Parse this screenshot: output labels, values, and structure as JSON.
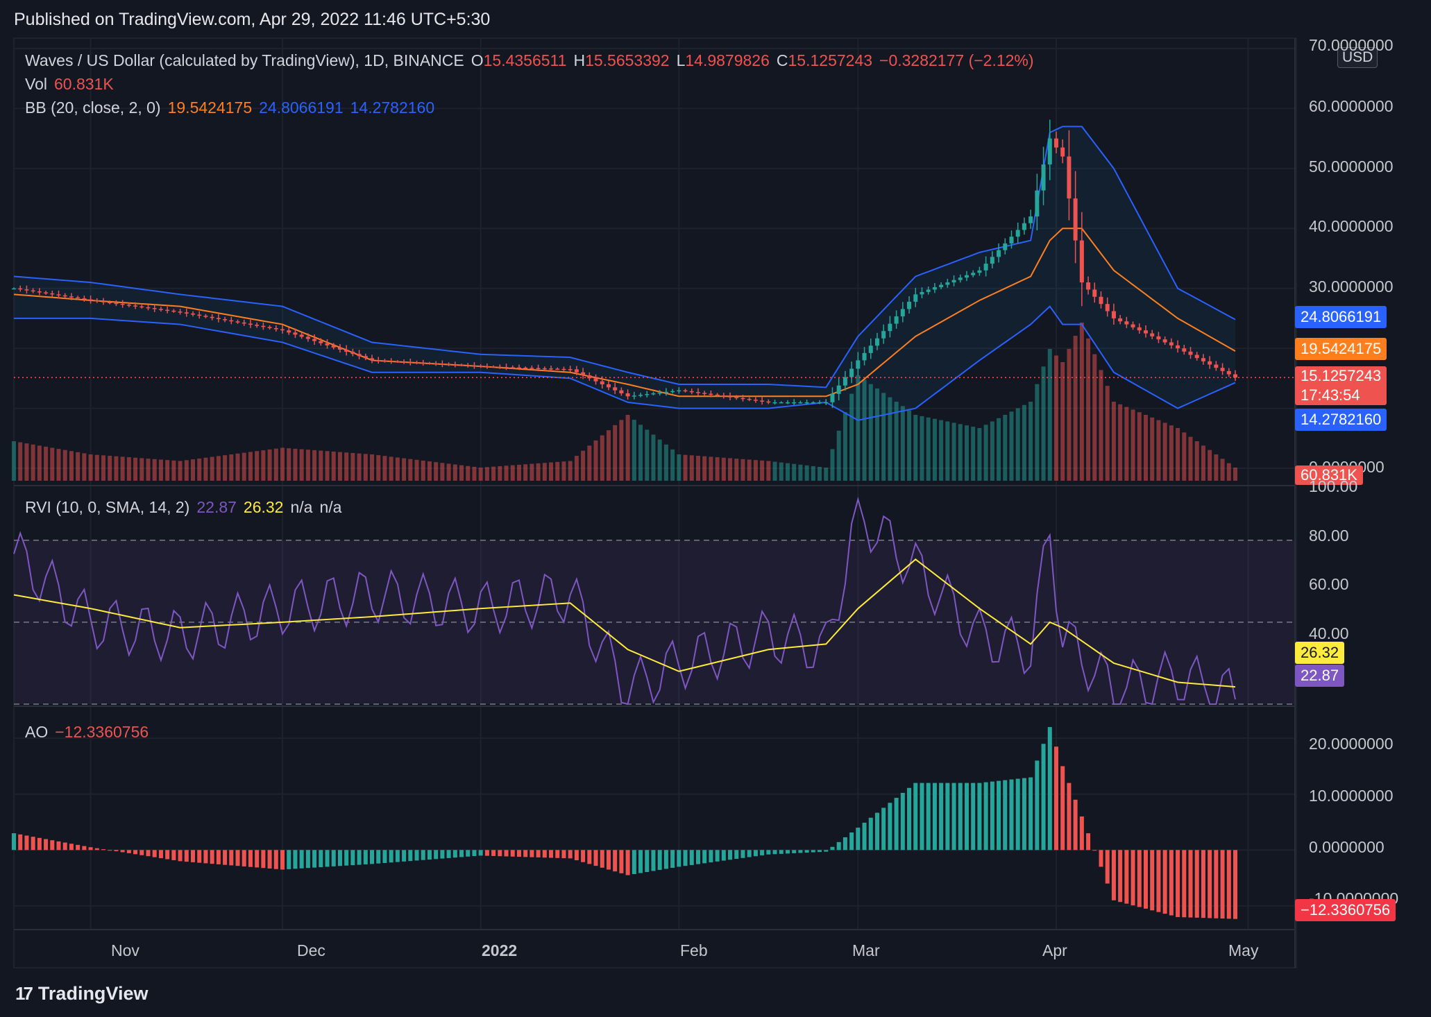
{
  "header": {
    "published": "Published on TradingView.com, Apr 29, 2022 11:46 UTC+5:30"
  },
  "footer": {
    "brand": "TradingView",
    "logo_mark": "17"
  },
  "colors": {
    "bg": "#131722",
    "up": "#26a69a",
    "down": "#ef5350",
    "bb_mid": "#ff7f1f",
    "bb_band": "#2962ff",
    "rvi": "#7e57c2",
    "rvi_signal": "#ffeb3b"
  },
  "price_pane": {
    "symbol": "Waves / US Dollar (calculated by TradingView), 1D, BINANCE",
    "o_label": "O",
    "o": "15.4356511",
    "h_label": "H",
    "h": "15.5653392",
    "l_label": "L",
    "l": "14.9879826",
    "c_label": "C",
    "c": "15.1257243",
    "change": "−0.3282177 (−2.12%)",
    "vol_label": "Vol",
    "vol": "60.831K",
    "bb_label": "BB (20, close, 2, 0)",
    "bb_basis": "19.5424175",
    "bb_upper": "24.8066191",
    "bb_lower": "14.2782160",
    "currency_button": "USD",
    "y_ticks": [
      "70.0000000",
      "60.0000000",
      "50.0000000",
      "40.0000000",
      "30.0000000",
      "0.0000000"
    ],
    "tags": {
      "upper": "24.8066191",
      "basis": "19.5424175",
      "price": "15.1257243",
      "countdown": "17:43:54",
      "lower": "14.2782160",
      "vol": "60.831K"
    }
  },
  "rvi_pane": {
    "label": "RVI (10, 0, SMA, 14, 2)",
    "rvi": "22.87",
    "signal": "26.32",
    "na1": "n/a",
    "na2": "n/a",
    "y_ticks": [
      "100.00",
      "80.00",
      "60.00",
      "40.00"
    ],
    "tags": {
      "signal": "26.32",
      "rvi": "22.87"
    }
  },
  "ao_pane": {
    "label": "AO",
    "value": "−12.3360756",
    "y_ticks": [
      "20.0000000",
      "10.0000000",
      "0.0000000",
      "-10.0000000"
    ],
    "tag": "−12.3360756"
  },
  "x_axis": {
    "labels": [
      "Nov",
      "Dec",
      "2022",
      "Feb",
      "Mar",
      "Apr",
      "May"
    ]
  },
  "chart_data": [
    {
      "type": "candlestick",
      "title": "Waves / US Dollar (calculated by TradingView), 1D, BINANCE",
      "ylim": [
        0,
        70
      ],
      "x": [
        "2021-10-20",
        "2021-11-01",
        "2021-11-15",
        "2021-12-01",
        "2021-12-15",
        "2022-01-01",
        "2022-01-15",
        "2022-01-24",
        "2022-02-01",
        "2022-02-15",
        "2022-02-24",
        "2022-03-01",
        "2022-03-10",
        "2022-03-20",
        "2022-03-28",
        "2022-03-31",
        "2022-04-02",
        "2022-04-05",
        "2022-04-10",
        "2022-04-20",
        "2022-04-29"
      ],
      "close": [
        30,
        28,
        26,
        23,
        18,
        17,
        16.5,
        12,
        13,
        11,
        11,
        18,
        29,
        33,
        42,
        55,
        52,
        31,
        25,
        20,
        15.13
      ],
      "volume_rel": [
        0.3,
        0.2,
        0.15,
        0.25,
        0.2,
        0.1,
        0.15,
        0.5,
        0.2,
        0.15,
        0.1,
        0.8,
        0.5,
        0.4,
        0.6,
        1.0,
        0.9,
        1.2,
        0.6,
        0.4,
        0.1
      ],
      "bb_upper": [
        32,
        31,
        29,
        27,
        21,
        19,
        18.5,
        16,
        14,
        14,
        13.5,
        22,
        32,
        36,
        38,
        56,
        57,
        57,
        50,
        30,
        24.81
      ],
      "bb_basis": [
        29,
        28,
        27,
        24,
        18,
        17,
        16,
        14,
        12,
        12,
        12,
        14,
        22,
        28,
        32,
        38,
        40,
        40,
        33,
        25,
        19.54
      ],
      "bb_lower": [
        25,
        25,
        24,
        21,
        16,
        16,
        15,
        11,
        10,
        10,
        11,
        8,
        10,
        18,
        24,
        27,
        24,
        24,
        16,
        10,
        14.28
      ],
      "last": {
        "open": 15.4356511,
        "high": 15.5653392,
        "low": 14.9879826,
        "close": 15.1257243,
        "volume": "60.831K"
      }
    },
    {
      "type": "line",
      "title": "RVI (10, 0, SMA, 14, 2)",
      "ylim": [
        20,
        100
      ],
      "x": [
        "2021-10-20",
        "2021-11-01",
        "2021-11-15",
        "2021-12-01",
        "2021-12-15",
        "2022-01-01",
        "2022-01-15",
        "2022-01-24",
        "2022-02-01",
        "2022-02-15",
        "2022-02-24",
        "2022-03-01",
        "2022-03-10",
        "2022-03-20",
        "2022-03-28",
        "2022-03-31",
        "2022-04-02",
        "2022-04-10",
        "2022-04-20",
        "2022-04-29"
      ],
      "series": [
        {
          "name": "RVI",
          "values": [
            75,
            50,
            45,
            55,
            60,
            55,
            60,
            25,
            35,
            45,
            40,
            90,
            70,
            45,
            40,
            83,
            45,
            25,
            30,
            22.87
          ]
        },
        {
          "name": "Signal",
          "values": [
            60,
            55,
            48,
            50,
            52,
            55,
            57,
            40,
            32,
            40,
            42,
            55,
            73,
            55,
            42,
            50,
            48,
            35,
            28,
            26.32
          ]
        }
      ]
    },
    {
      "type": "bar",
      "title": "AO",
      "ylim": [
        -13,
        23
      ],
      "x": [
        "2021-10-20",
        "2021-11-01",
        "2021-11-15",
        "2021-12-01",
        "2021-12-15",
        "2022-01-01",
        "2022-01-15",
        "2022-01-24",
        "2022-02-01",
        "2022-02-15",
        "2022-02-24",
        "2022-03-01",
        "2022-03-10",
        "2022-03-20",
        "2022-03-28",
        "2022-03-31",
        "2022-04-02",
        "2022-04-10",
        "2022-04-20",
        "2022-04-29"
      ],
      "values": [
        3,
        0.5,
        -2,
        -3.5,
        -2.5,
        -1,
        -1.5,
        -4.5,
        -3,
        -0.8,
        -0.3,
        4,
        12,
        12,
        13,
        22,
        15,
        -9,
        -12,
        -12.3360756
      ]
    }
  ]
}
